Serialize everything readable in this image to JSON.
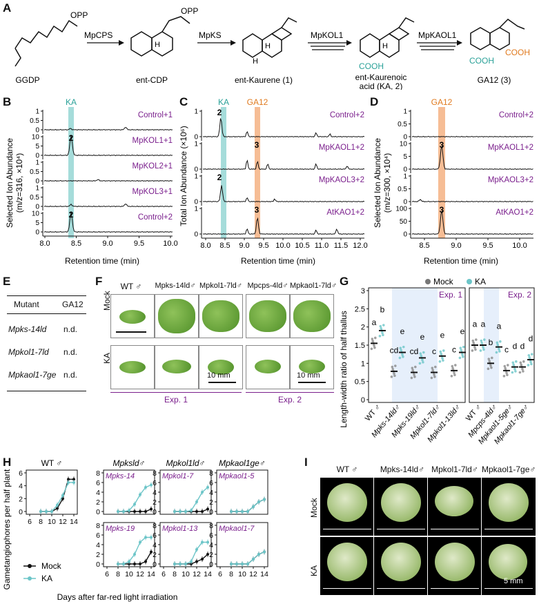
{
  "panels": {
    "A": {
      "label": "A",
      "compounds": [
        {
          "name": "GGDP"
        },
        {
          "name": "ent-CDP"
        },
        {
          "name": "ent-Kaurene (1)"
        },
        {
          "name": "ent-Kaurenoic acid (KA, 2)",
          "line1": "ent-Kaurenoic",
          "line2": "acid (KA, 2)"
        },
        {
          "name": "GA12 (3)"
        }
      ],
      "enzymes": [
        "MpCPS",
        "MpKS",
        "MpKOL1",
        "MpKAOL1"
      ],
      "groups": {
        "opp": "OPP",
        "h": "H",
        "cooh": "COOH"
      }
    },
    "B": {
      "label": "B",
      "highlight": "KA",
      "ylabel": "Selected Ion Abundance",
      "ylabel2": "(m/z=316, ×10⁴)",
      "xlabel": "Retention time (min)",
      "xticks": [
        "8.0",
        "8.5",
        "9.0",
        "9.5",
        "10.0"
      ],
      "traces": [
        {
          "name": "Control+1",
          "yticks": [
            "0",
            "0.5",
            "1"
          ],
          "peak": ""
        },
        {
          "name": "MpKOL1+1",
          "yticks": [
            "0",
            "5",
            "10"
          ],
          "peak": "2"
        },
        {
          "name": "MpKOL2+1",
          "yticks": [
            "0",
            "0.5",
            "1"
          ],
          "peak": ""
        },
        {
          "name": "MpKOL3+1",
          "yticks": [
            "0",
            "0.5",
            "1"
          ],
          "peak": ""
        },
        {
          "name": "Control+2",
          "yticks": [
            "0",
            "5",
            "10"
          ],
          "peak": "2"
        }
      ]
    },
    "C": {
      "label": "C",
      "highlight1": "KA",
      "highlight2": "GA12",
      "ylabel": "Total Ion Abundance (×10⁶)",
      "xlabel": "Retention time (min)",
      "xticks": [
        "8.0",
        "8.5",
        "9.0",
        "9.5",
        "10.0",
        "10.5",
        "11.0",
        "11.5",
        "12.0"
      ],
      "traces": [
        {
          "name": "Control+2",
          "yticks": [
            "0",
            "1"
          ],
          "peak": "2"
        },
        {
          "name": "MpKAOL1+2",
          "yticks": [
            "0",
            "1"
          ],
          "peak": "3"
        },
        {
          "name": "MpKAOL3+2",
          "yticks": [
            "0",
            "1"
          ],
          "peak": "2"
        },
        {
          "name": "AtKAO1+2",
          "yticks": [
            "0",
            "1"
          ],
          "peak": "3"
        }
      ]
    },
    "D": {
      "label": "D",
      "highlight": "GA12",
      "ylabel": "Selected Ion Abundance",
      "ylabel2": "(m/z=300, ×10⁴)",
      "xlabel": "Retention time (min)",
      "xticks": [
        "8.5",
        "9.0",
        "9.5",
        "10.0"
      ],
      "traces": [
        {
          "name": "Control+2",
          "yticks": [
            "0",
            "0.5",
            "1"
          ],
          "peak": ""
        },
        {
          "name": "MpKAOL1+2",
          "yticks": [
            "0",
            "5",
            "10"
          ],
          "peak": "3"
        },
        {
          "name": "MpKAOL3+2",
          "yticks": [
            "0",
            "0.5",
            "1"
          ],
          "peak": ""
        },
        {
          "name": "AtKAO1+2",
          "yticks": [
            "0",
            "50",
            "100"
          ],
          "peak": "3"
        }
      ]
    },
    "E": {
      "label": "E",
      "headers": [
        "Mutant",
        "GA12"
      ],
      "rows": [
        [
          "Mpks-14ld",
          "n.d."
        ],
        [
          "Mpkol1-7ld",
          "n.d."
        ],
        [
          "Mpkaol1-7ge",
          "n.d."
        ]
      ]
    },
    "F": {
      "label": "F",
      "columns": [
        "WT ♂",
        "Mpks-14ld♂",
        "Mpkol1-7ld♂",
        "Mpcps-4ld♂",
        "Mpkaol1-7ld♂"
      ],
      "rows": [
        "Mock",
        "KA"
      ],
      "scale": "10 mm",
      "exp1": "Exp. 1",
      "exp2": "Exp. 2"
    },
    "G": {
      "label": "G",
      "legend": [
        "Mock",
        "KA"
      ],
      "ylabel": "Length-width ratio of half thallus",
      "yticks": [
        "0",
        "0.5",
        "1",
        "1.5",
        "2",
        "2.5",
        "3"
      ],
      "exp1": "Exp. 1",
      "exp2": "Exp. 2",
      "exp1_categories": [
        "WT ♂",
        "Mpks-14ld♂",
        "Mpks-19ld♂",
        "Mpkol1-7ld♂",
        "Mpkol1-13ld♂"
      ],
      "exp2_categories": [
        "WT ♂",
        "Mpcps-4ld♂",
        "Mpkaol1-5ge♂",
        "Mpkaol1-7ge♂"
      ],
      "exp1_letters": [
        "a",
        "b",
        "cd",
        "e",
        "cd",
        "e",
        "c",
        "e",
        "c",
        "e"
      ],
      "exp2_letters": [
        "a",
        "a",
        "b",
        "a",
        "c",
        "d",
        "d",
        "d"
      ]
    },
    "H": {
      "label": "H",
      "ylabel": "Gametangiophores per half plant",
      "xlabel": "Days after far-red light irradiation",
      "legend": [
        "Mock",
        "KA"
      ],
      "xticks": [
        "6",
        "8",
        "10",
        "12",
        "14"
      ],
      "yticks": [
        "0",
        "2",
        "4",
        "6",
        "8"
      ],
      "groups": [
        {
          "title": "WT ♂",
          "subplots": [
            ""
          ]
        },
        {
          "title": "Mpksld♂",
          "subplots": [
            "Mpks-14",
            "Mpks-19"
          ]
        },
        {
          "title": "Mpkol1ld♂",
          "subplots": [
            "Mpkol1-7",
            "Mpkol1-13"
          ]
        },
        {
          "title": "Mpkaol1ge♂",
          "subplots": [
            "Mpkaol1-5",
            "Mpkaol1-7"
          ]
        }
      ],
      "sig": [
        "*",
        "**"
      ]
    },
    "I": {
      "label": "I",
      "columns": [
        "WT ♂",
        "Mpks-14ld♂",
        "Mpkol1-7ld♂",
        "Mpkaol1-7ge♂"
      ],
      "rows": [
        "Mock",
        "KA"
      ],
      "scale": "5 mm"
    }
  },
  "colors": {
    "mock": "#222222",
    "ka": "#6cc5c8",
    "purple": "#7a1e8c",
    "teal_band": "#8fd3d1",
    "orange_band": "#f4b183"
  }
}
